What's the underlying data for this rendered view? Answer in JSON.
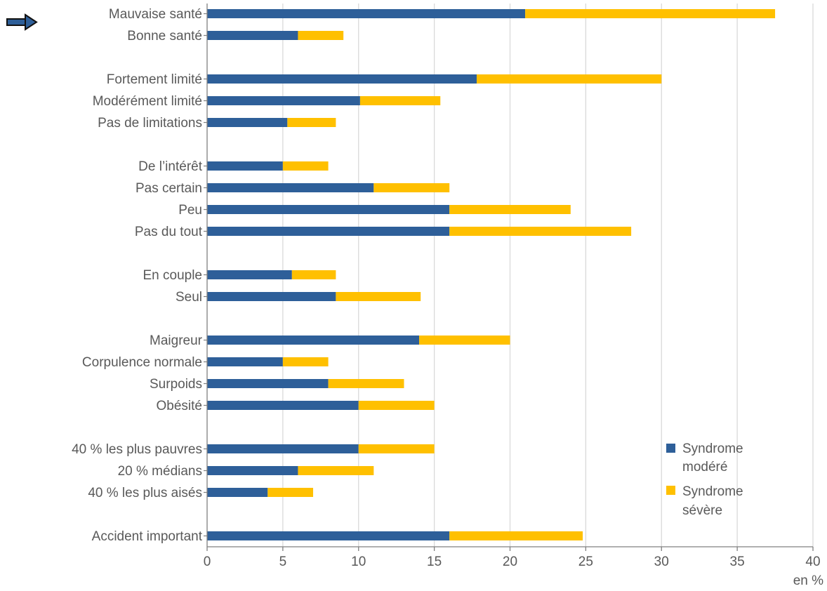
{
  "chart_data": {
    "type": "bar",
    "orientation": "horizontal",
    "stacked": true,
    "categories": [
      "Mauvaise santé",
      "Bonne santé",
      "Fortement limité",
      "Modérément limité",
      "Pas de limitations",
      "De l’intérêt",
      "Pas certain",
      "Peu",
      "Pas du tout",
      "En couple",
      "Seul",
      "Maigreur",
      "Corpulence normale",
      "Surpoids",
      "Obésité",
      "40 % les plus pauvres",
      "20 % médians",
      "40 % les plus aisés",
      "Accident important"
    ],
    "groups": [
      2,
      3,
      4,
      2,
      4,
      3,
      1
    ],
    "series": [
      {
        "name": "Syndrome modéré",
        "color": "#2E5F99",
        "values": [
          21,
          6,
          17.8,
          10.1,
          5.3,
          5,
          11,
          16,
          16,
          5.6,
          8.5,
          14,
          5,
          8,
          10,
          10,
          6,
          4,
          16
        ]
      },
      {
        "name": "Syndrome sévère",
        "color": "#FFC000",
        "values": [
          16.5,
          3,
          12.2,
          5.3,
          3.2,
          3,
          5,
          8,
          12,
          2.9,
          5.6,
          6,
          3,
          5,
          5,
          5,
          5,
          3,
          8.8
        ]
      }
    ],
    "xlim": [
      0,
      40
    ],
    "xticks": [
      "0",
      "5",
      "10",
      "15",
      "20",
      "25",
      "30",
      "35",
      "40"
    ],
    "xunit": "en %",
    "grid": true,
    "legend_position": "bottom-right",
    "legend_labels": [
      [
        "Syndrome",
        "modéré"
      ],
      [
        "Syndrome",
        "sévère"
      ]
    ],
    "highlight_marker": "arrow-right-icon"
  }
}
